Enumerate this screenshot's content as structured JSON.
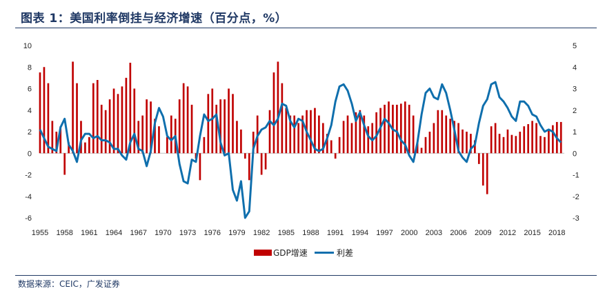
{
  "header": {
    "title": "图表 1：美国利率倒挂与经济增速（百分点，%）"
  },
  "footer": {
    "source": "数据来源：CEIC，广发证券"
  },
  "chart_data": {
    "type": "bar+line",
    "title": "图表 1：美国利率倒挂与经济增速（百分点，%）",
    "x_start": 1955,
    "x_end": 2018.9,
    "x_tick_labels": [
      "1955",
      "1958",
      "1961",
      "1964",
      "1967",
      "1970",
      "1973",
      "1976",
      "1979",
      "1982",
      "1985",
      "1988",
      "1991",
      "1994",
      "1997",
      "2000",
      "2003",
      "2006",
      "2009",
      "2012",
      "2015",
      "2018"
    ],
    "y_left": {
      "min": -6,
      "max": 10,
      "ticks": [
        "-6",
        "-4",
        "-2",
        "0",
        "2",
        "4",
        "6",
        "8",
        "10"
      ]
    },
    "y_right": {
      "min": -3,
      "max": 5,
      "ticks": [
        "-3",
        "-2",
        "-1",
        "0",
        "1",
        "2",
        "3",
        "4",
        "5"
      ]
    },
    "series": [
      {
        "name": "GDP增速",
        "axis": "left",
        "type": "bar",
        "color": "#c00000",
        "x": [
          1955,
          1955.5,
          1956,
          1956.5,
          1957,
          1957.5,
          1958,
          1958.5,
          1959,
          1959.5,
          1960,
          1960.5,
          1961,
          1961.5,
          1962,
          1962.5,
          1963,
          1963.5,
          1964,
          1964.5,
          1965,
          1965.5,
          1966,
          1966.5,
          1967,
          1967.5,
          1968,
          1968.5,
          1969,
          1969.5,
          1970,
          1970.5,
          1971,
          1971.5,
          1972,
          1972.5,
          1973,
          1973.5,
          1974,
          1974.5,
          1975,
          1975.5,
          1976,
          1976.5,
          1977,
          1977.5,
          1978,
          1978.5,
          1979,
          1979.5,
          1980,
          1980.5,
          1981,
          1981.5,
          1982,
          1982.5,
          1983,
          1983.5,
          1984,
          1984.5,
          1985,
          1985.5,
          1986,
          1986.5,
          1987,
          1987.5,
          1988,
          1988.5,
          1989,
          1989.5,
          1990,
          1990.5,
          1991,
          1991.5,
          1992,
          1992.5,
          1993,
          1993.5,
          1994,
          1994.5,
          1995,
          1995.5,
          1996,
          1996.5,
          1997,
          1997.5,
          1998,
          1998.5,
          1999,
          1999.5,
          2000,
          2000.5,
          2001,
          2001.5,
          2002,
          2002.5,
          2003,
          2003.5,
          2004,
          2004.5,
          2005,
          2005.5,
          2006,
          2006.5,
          2007,
          2007.5,
          2008,
          2008.5,
          2009,
          2009.5,
          2010,
          2010.5,
          2011,
          2011.5,
          2012,
          2012.5,
          2013,
          2013.5,
          2014,
          2014.5,
          2015,
          2015.5,
          2016,
          2016.5,
          2017,
          2017.5,
          2018,
          2018.5
        ],
        "values": [
          7.5,
          8,
          6.5,
          3,
          2,
          2.5,
          -2,
          1,
          8.5,
          6.5,
          3,
          1,
          1.5,
          6.5,
          6.8,
          4.5,
          4,
          5,
          6,
          5.5,
          6.2,
          7,
          8.4,
          6,
          3,
          3.5,
          5,
          4.8,
          3.2,
          2.5,
          0,
          1.5,
          3.5,
          3.2,
          5,
          6.5,
          6.2,
          4.5,
          -0.5,
          -2.5,
          1.5,
          5.5,
          6,
          4.5,
          5,
          5,
          6,
          5.5,
          3,
          2.2,
          -0.5,
          -2.5,
          2,
          3.5,
          -2,
          -1.5,
          4,
          7.5,
          8.5,
          6.5,
          4.2,
          3.5,
          3.5,
          2.8,
          3.5,
          4,
          4,
          4.2,
          3.5,
          2.8,
          1.8,
          1.2,
          -0.5,
          1.5,
          3,
          3.5,
          2.8,
          3.8,
          4,
          3.5,
          2.5,
          2.8,
          3.8,
          4.2,
          4.5,
          4.8,
          4.5,
          4.5,
          4.6,
          4.8,
          4.5,
          3.5,
          1,
          0.5,
          1.5,
          2,
          2.8,
          4,
          4,
          3.5,
          3.2,
          3,
          2.8,
          2.2,
          2,
          1.8,
          1.2,
          -1,
          -3,
          -3.8,
          2.5,
          2.8,
          1.8,
          1.5,
          2.2,
          1.7,
          1.6,
          2,
          2.5,
          2.7,
          3,
          2.8,
          1.6,
          1.5,
          2.2,
          2.6,
          2.9,
          2.9
        ]
      },
      {
        "name": "利差",
        "axis": "right",
        "type": "line",
        "color": "#0f6fad",
        "x": [
          1955,
          1955.5,
          1956,
          1956.5,
          1957,
          1957.5,
          1958,
          1958.5,
          1959,
          1959.5,
          1960,
          1960.5,
          1961,
          1961.5,
          1962,
          1962.5,
          1963,
          1963.5,
          1964,
          1964.5,
          1965,
          1965.5,
          1966,
          1966.5,
          1967,
          1967.5,
          1968,
          1968.5,
          1969,
          1969.5,
          1970,
          1970.5,
          1971,
          1971.5,
          1972,
          1972.5,
          1973,
          1973.5,
          1974,
          1974.5,
          1975,
          1975.5,
          1976,
          1976.5,
          1977,
          1977.5,
          1978,
          1978.5,
          1979,
          1979.5,
          1980,
          1980.5,
          1981,
          1981.5,
          1982,
          1982.5,
          1983,
          1983.5,
          1984,
          1984.5,
          1985,
          1985.5,
          1986,
          1986.5,
          1987,
          1987.5,
          1988,
          1988.5,
          1989,
          1989.5,
          1990,
          1990.5,
          1991,
          1991.5,
          1992,
          1992.5,
          1993,
          1993.5,
          1994,
          1994.5,
          1995,
          1995.5,
          1996,
          1996.5,
          1997,
          1997.5,
          1998,
          1998.5,
          1999,
          1999.5,
          2000,
          2000.5,
          2001,
          2001.5,
          2002,
          2002.5,
          2003,
          2003.5,
          2004,
          2004.5,
          2005,
          2005.5,
          2006,
          2006.5,
          2007,
          2007.5,
          2008,
          2008.5,
          2009,
          2009.5,
          2010,
          2010.5,
          2011,
          2011.5,
          2012,
          2012.5,
          2013,
          2013.5,
          2014,
          2014.5,
          2015,
          2015.5,
          2016,
          2016.5,
          2017,
          2017.5,
          2018,
          2018.5
        ],
        "values": [
          1.1,
          0.7,
          0.3,
          0.2,
          0.1,
          1.2,
          1.6,
          0.4,
          0.1,
          -0.4,
          0.6,
          0.9,
          0.9,
          0.7,
          0.8,
          0.6,
          0.6,
          0.5,
          0.2,
          0.2,
          -0.1,
          -0.3,
          0.5,
          0.9,
          0.2,
          0.1,
          -0.6,
          0.1,
          1.4,
          2.1,
          1.7,
          0.8,
          0.6,
          0.8,
          -0.5,
          -1.3,
          -1.4,
          -0.3,
          -0.4,
          0.8,
          1.8,
          1.5,
          1.6,
          1.8,
          0.5,
          -0.1,
          0,
          -1.7,
          -2.2,
          -1.3,
          -3,
          -2.7,
          0.2,
          0.8,
          1.1,
          1.2,
          1.5,
          1.3,
          1.6,
          2.3,
          2.2,
          1.5,
          1.2,
          1.6,
          1.5,
          1,
          0.6,
          0.2,
          0.1,
          0.2,
          0.7,
          1.3,
          2.4,
          3.1,
          3.2,
          2.9,
          2.3,
          1.5,
          1.9,
          1.3,
          0.8,
          0.6,
          0.8,
          1.2,
          1.6,
          1.4,
          1.1,
          1,
          0.6,
          0.4,
          -0.1,
          -0.4,
          0.5,
          1.8,
          2.8,
          3,
          2.6,
          2.5,
          3.2,
          2.8,
          2,
          1.1,
          0.1,
          -0.2,
          -0.4,
          0.2,
          0.4,
          1.4,
          2.2,
          2.5,
          3.2,
          3.3,
          2.6,
          2.4,
          2.1,
          1.7,
          1.5,
          2.4,
          2.4,
          2.2,
          1.8,
          1.7,
          1.3,
          1,
          1.1,
          1,
          0.7,
          0.5
        ]
      }
    ],
    "legend": {
      "position": "bottom-center",
      "items": [
        "GDP增速",
        "利差"
      ]
    }
  }
}
